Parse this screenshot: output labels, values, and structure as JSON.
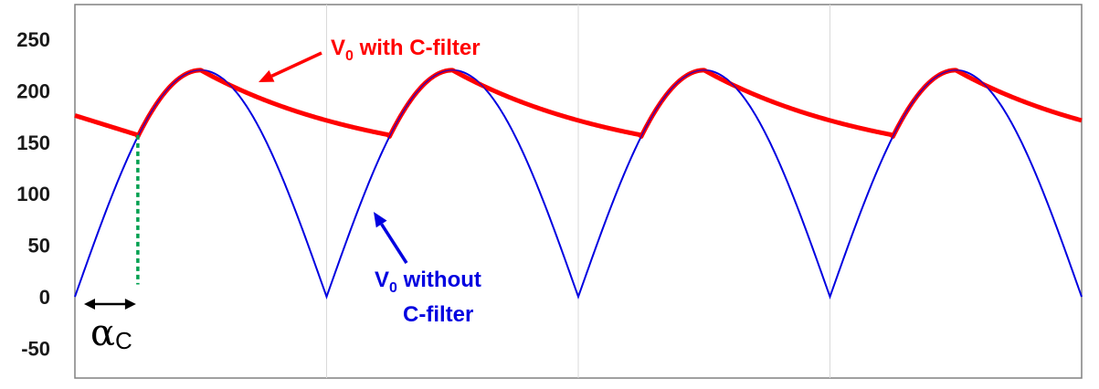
{
  "chart_data": {
    "type": "line",
    "title": "",
    "xlabel": "",
    "ylabel": "",
    "ylim": [
      -80,
      265
    ],
    "yticks": [
      250,
      200,
      150,
      100,
      50,
      0,
      -50
    ],
    "grid": "vertical lines only",
    "x_domain": [
      0,
      4
    ],
    "x_unit": "half-cycles of the input sine",
    "peak_voltage": 220,
    "series": [
      {
        "key": "without_filter",
        "color": "#0000e0",
        "shape": "full-wave rectified sine",
        "x": [
          0,
          0.25,
          0.5,
          0.75,
          1,
          1.25,
          1.5,
          1.75,
          2,
          2.25,
          2.5,
          2.75,
          3,
          3.25,
          3.5,
          3.75,
          4
        ],
        "values": [
          0,
          156,
          220,
          156,
          0,
          156,
          220,
          156,
          0,
          156,
          220,
          156,
          0,
          156,
          220,
          156,
          0
        ]
      },
      {
        "key": "with_filter",
        "color": "#ff0000",
        "shape": "capacitor ripple",
        "x": [
          0,
          0.25,
          0.45,
          0.5,
          1,
          1.25,
          1.45,
          1.5,
          2,
          2.25,
          2.5,
          3,
          3.25,
          3.5,
          4
        ],
        "values": [
          176,
          157,
          218,
          220,
          176,
          157,
          218,
          220,
          176,
          157,
          220,
          176,
          157,
          220,
          176
        ]
      }
    ],
    "annotations": {
      "with_filter_label": "V",
      "with_filter_label_sub": "0",
      "with_filter_label_rest": " with C-filter",
      "without_filter_label_line1": "V",
      "without_filter_label_sub": "0",
      "without_filter_label_line1_rest": " without",
      "without_filter_label_line2": "C-filter",
      "alpha_symbol": "α",
      "alpha_sub": "C",
      "alpha_value_x": 0.25,
      "alpha_value_y": 157
    },
    "colors": {
      "with_filter": "#ff0000",
      "without_filter": "#0000e0",
      "marker_line": "#00a050",
      "grid": "#d9d9d9",
      "axis": "#808080"
    }
  }
}
